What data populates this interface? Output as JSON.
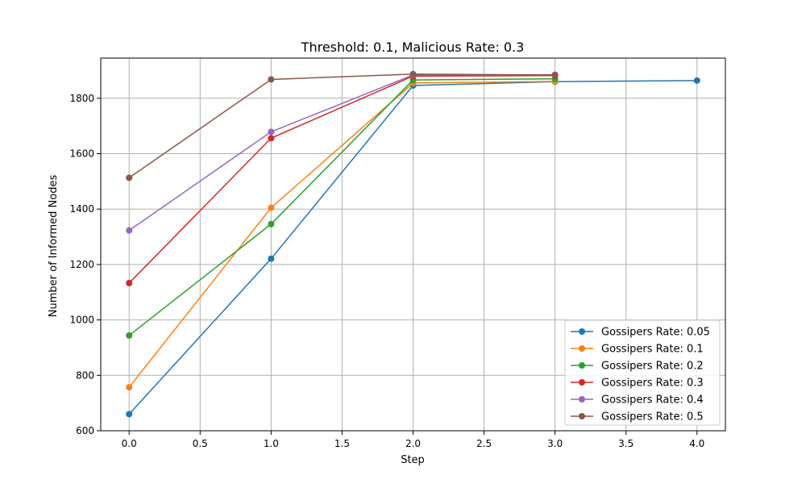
{
  "chart_data": {
    "type": "line",
    "title": "Threshold: 0.1, Malicious Rate: 0.3",
    "xlabel": "Step",
    "ylabel": "Number of Informed Nodes",
    "xlim": [
      -0.2,
      4.2
    ],
    "ylim": [
      600,
      1945
    ],
    "xticks": [
      "0.0",
      "0.5",
      "1.0",
      "1.5",
      "2.0",
      "2.5",
      "3.0",
      "3.5",
      "4.0"
    ],
    "yticks": [
      "600",
      "800",
      "1000",
      "1200",
      "1400",
      "1600",
      "1800"
    ],
    "grid": true,
    "legend_position": "lower-right",
    "series": [
      {
        "name": "Gossipers Rate: 0.05",
        "color": "#1f77b4",
        "x": [
          0,
          1,
          2,
          3,
          4
        ],
        "y": [
          660,
          1221,
          1846,
          1860,
          1864
        ]
      },
      {
        "name": "Gossipers Rate: 0.1",
        "color": "#ff7f0e",
        "x": [
          0,
          1,
          2,
          3
        ],
        "y": [
          757,
          1405,
          1855,
          1861
        ]
      },
      {
        "name": "Gossipers Rate: 0.2",
        "color": "#2ca02c",
        "x": [
          0,
          1,
          2,
          3
        ],
        "y": [
          944,
          1346,
          1866,
          1870
        ]
      },
      {
        "name": "Gossipers Rate: 0.3",
        "color": "#d62728",
        "x": [
          0,
          1,
          2,
          3
        ],
        "y": [
          1133,
          1656,
          1880,
          1882
        ]
      },
      {
        "name": "Gossipers Rate: 0.4",
        "color": "#9467bd",
        "x": [
          0,
          1,
          2,
          3
        ],
        "y": [
          1323,
          1679,
          1884,
          1885
        ]
      },
      {
        "name": "Gossipers Rate: 0.5",
        "color": "#8c564b",
        "x": [
          0,
          1,
          2,
          3
        ],
        "y": [
          1513,
          1868,
          1887,
          1884
        ]
      }
    ]
  }
}
